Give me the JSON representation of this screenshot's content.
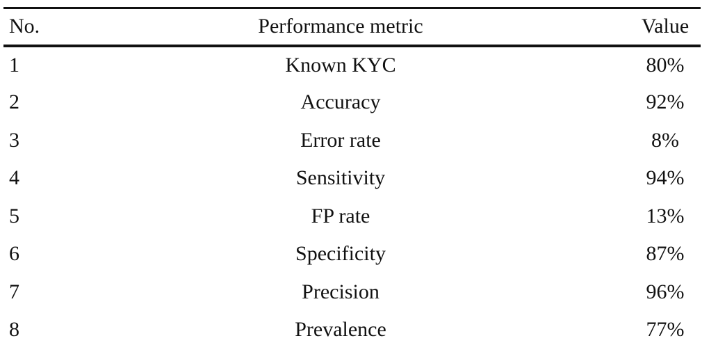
{
  "colors": {
    "background": "#ffffff",
    "text": "#111111",
    "rule": "#111111"
  },
  "table": {
    "columns": [
      {
        "key": "no",
        "label": "No."
      },
      {
        "key": "metric",
        "label": "Performance metric"
      },
      {
        "key": "value",
        "label": "Value"
      }
    ],
    "rows": [
      {
        "no": "1",
        "metric": "Known KYC",
        "value": "80%"
      },
      {
        "no": "2",
        "metric": "Accuracy",
        "value": "92%"
      },
      {
        "no": "3",
        "metric": "Error rate",
        "value": "8%"
      },
      {
        "no": "4",
        "metric": "Sensitivity",
        "value": "94%"
      },
      {
        "no": "5",
        "metric": "FP rate",
        "value": "13%"
      },
      {
        "no": "6",
        "metric": "Specificity",
        "value": "87%"
      },
      {
        "no": "7",
        "metric": "Precision",
        "value": "96%"
      },
      {
        "no": "8",
        "metric": "Prevalence",
        "value": "77%"
      }
    ]
  },
  "chart_data": {
    "type": "table",
    "title": "",
    "categories": [
      "Known KYC",
      "Accuracy",
      "Error rate",
      "Sensitivity",
      "FP rate",
      "Specificity",
      "Precision",
      "Prevalence"
    ],
    "values_percent": [
      80,
      92,
      8,
      94,
      13,
      87,
      96,
      77
    ]
  }
}
